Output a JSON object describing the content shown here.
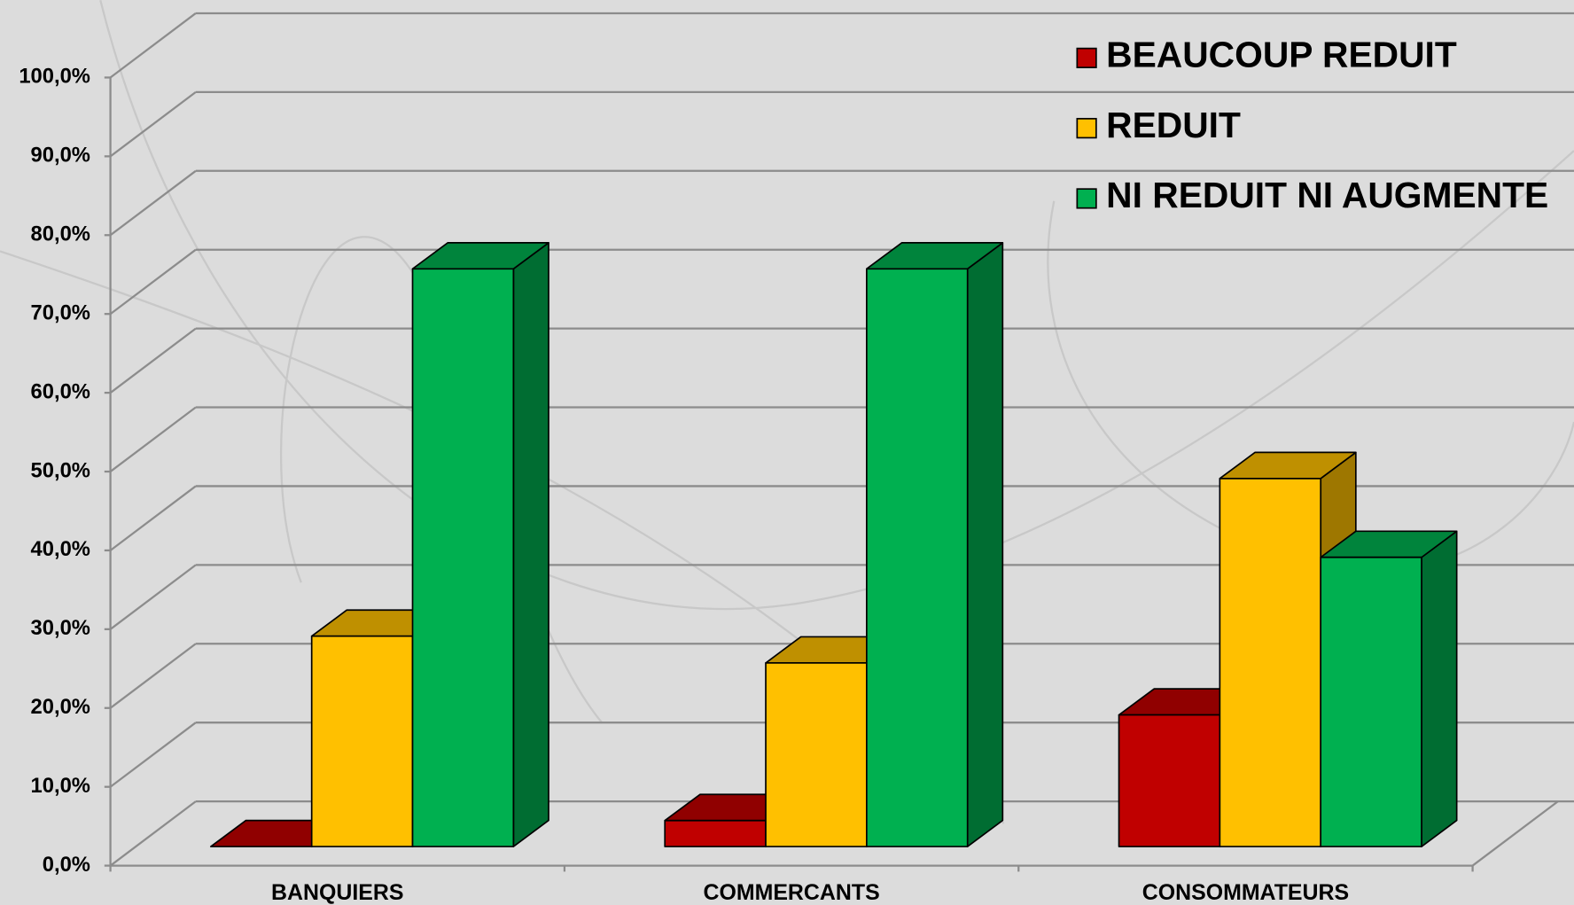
{
  "chart_data": {
    "type": "bar",
    "categories": [
      "BANQUIERS",
      "COMMERCANTS",
      "CONSOMMATEURS"
    ],
    "series": [
      {
        "name": "BEAUCOUP REDUIT",
        "color": "#c00000",
        "values": [
          0,
          3.3,
          16.7
        ]
      },
      {
        "name": "REDUIT",
        "color": "#ffc000",
        "values": [
          26.7,
          23.3,
          46.7
        ]
      },
      {
        "name": "NI REDUIT NI AUGMENTE",
        "color": "#00b050",
        "values": [
          73.3,
          73.3,
          36.7
        ]
      }
    ],
    "ylim": [
      0,
      100
    ],
    "yticks": [
      {
        "value": 0,
        "label": "0,0%"
      },
      {
        "value": 10,
        "label": "10,0%"
      },
      {
        "value": 20,
        "label": "20,0%"
      },
      {
        "value": 30,
        "label": "30,0%"
      },
      {
        "value": 40,
        "label": "40,0%"
      },
      {
        "value": 50,
        "label": "50,0%"
      },
      {
        "value": 60,
        "label": "60,0%"
      },
      {
        "value": 70,
        "label": "70,0%"
      },
      {
        "value": 80,
        "label": "80,0%"
      },
      {
        "value": 90,
        "label": "90,0%"
      },
      {
        "value": 100,
        "label": "100,0%"
      }
    ],
    "grid": true,
    "legend": "top-right"
  }
}
